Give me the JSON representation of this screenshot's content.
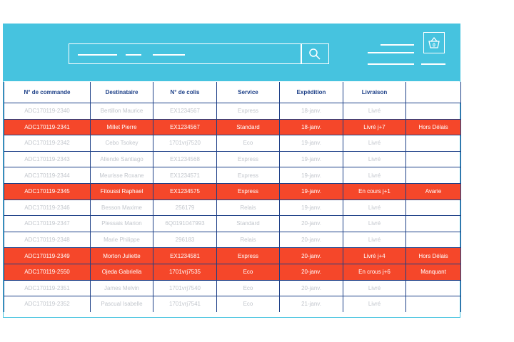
{
  "colors": {
    "header_bg": "#46c3df",
    "alert_row": "#f5472a",
    "grid_lines": "#1c3f87",
    "muted_text": "#c2c6cc"
  },
  "header": {
    "search_icon": "search-icon",
    "cart_icon": "shopping-basket-icon",
    "cart_count": "0"
  },
  "table": {
    "columns": [
      "N° de commande",
      "Destinataire",
      "N° de colis",
      "Service",
      "Expédition",
      "Livraison",
      ""
    ],
    "rows": [
      {
        "alert": false,
        "cells": [
          "ADC170119-2340",
          "Bertillon Maurice",
          "EX1234567",
          "Express",
          "18-janv.",
          "Livré",
          ""
        ]
      },
      {
        "alert": true,
        "cells": [
          "ADC170119-2341",
          "Millet Pierre",
          "EX1234567",
          "Standard",
          "18-janv.",
          "Livré j+7",
          "Hors Délais"
        ]
      },
      {
        "alert": false,
        "cells": [
          "ADC170119-2342",
          "Cebo Tsokey",
          "1701vrj7520",
          "Eco",
          "19-janv.",
          "Livré",
          ""
        ]
      },
      {
        "alert": false,
        "cells": [
          "ADC170119-2343",
          "Allende Santiago",
          "EX1234568",
          "Express",
          "19-janv.",
          "Livré",
          ""
        ]
      },
      {
        "alert": false,
        "cells": [
          "ADC170119-2344",
          "Meurisse Roxane",
          "EX1234571",
          "Express",
          "19-janv.",
          "Livré",
          ""
        ]
      },
      {
        "alert": true,
        "cells": [
          "ADC170119-2345",
          "Fitoussi Raphael",
          "EX1234575",
          "Express",
          "19-janv.",
          "En cours j+1",
          "Avarie"
        ]
      },
      {
        "alert": false,
        "cells": [
          "ADC170119-2346",
          "Besson Maxime",
          "256179",
          "Relais",
          "19-janv.",
          "Livré",
          ""
        ]
      },
      {
        "alert": false,
        "cells": [
          "ADC170119-2347",
          "Plessais Marion",
          "6Q0191047993",
          "Standard",
          "20-janv.",
          "Livré",
          ""
        ]
      },
      {
        "alert": false,
        "cells": [
          "ADC170119-2348",
          "Marie Philippe",
          "296183",
          "Relais",
          "20-janv.",
          "Livré",
          ""
        ]
      },
      {
        "alert": true,
        "cells": [
          "ADC170119-2349",
          "Morton Juliette",
          "EX1234581",
          "Express",
          "20-janv.",
          "Livré j+4",
          "Hors Délais"
        ]
      },
      {
        "alert": true,
        "cells": [
          "ADC170119-2550",
          "Ojeda Gabriella",
          "1701vrj7535",
          "Eco",
          "20-janv.",
          "En crous j+6",
          "Manquant"
        ]
      },
      {
        "alert": false,
        "cells": [
          "ADC170119-2351",
          "James Melvin",
          "1701vrj7540",
          "Eco",
          "20-janv.",
          "Livré",
          ""
        ]
      },
      {
        "alert": false,
        "cells": [
          "ADC170119-2352",
          "Pascual Isabelle",
          "1701vrj7541",
          "Eco",
          "21-janv.",
          "Livré",
          ""
        ]
      }
    ]
  }
}
